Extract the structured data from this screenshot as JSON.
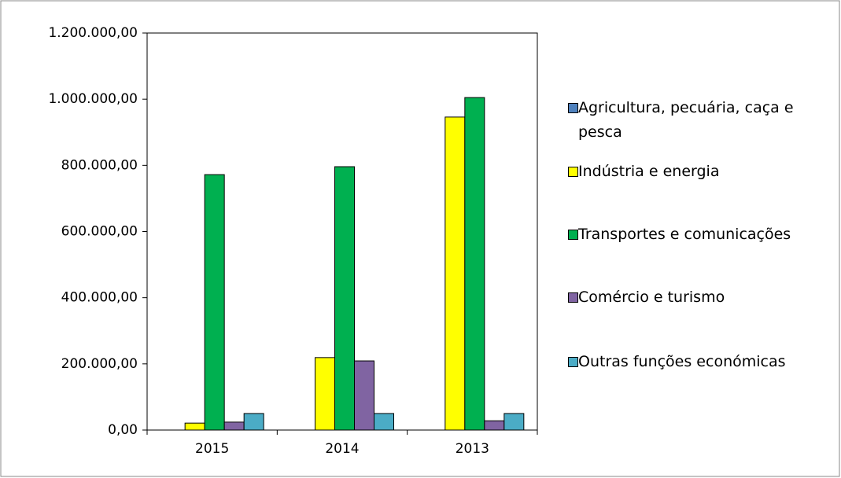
{
  "chart_data": {
    "type": "bar",
    "categories": [
      "2015",
      "2014",
      "2013"
    ],
    "series": [
      {
        "name": "Agricultura, pecuária, caça e pesca",
        "color": "#4f81bd",
        "values": [
          0,
          0,
          0
        ]
      },
      {
        "name": "Indústria e energia",
        "color": "#ffff00",
        "values": [
          21000,
          219000,
          946000
        ]
      },
      {
        "name": "Transportes e comunicações",
        "color": "#00b050",
        "values": [
          772000,
          796000,
          1005000
        ]
      },
      {
        "name": "Comércio e turismo",
        "color": "#8064a2",
        "values": [
          24000,
          209000,
          28000
        ]
      },
      {
        "name": "Outras funções económicas",
        "color": "#4bacc6",
        "values": [
          50000,
          50000,
          50000
        ]
      }
    ],
    "ylim": [
      0,
      1200000
    ],
    "yticks": [
      {
        "value": 0,
        "label": "0,00"
      },
      {
        "value": 200000,
        "label": "200.000,00"
      },
      {
        "value": 400000,
        "label": "400.000,00"
      },
      {
        "value": 600000,
        "label": "600.000,00"
      },
      {
        "value": 800000,
        "label": "800.000,00"
      },
      {
        "value": 1000000,
        "label": "1.000.000,00"
      },
      {
        "value": 1200000,
        "label": "1.200.000,00"
      }
    ],
    "grid": false,
    "legend": "right"
  }
}
